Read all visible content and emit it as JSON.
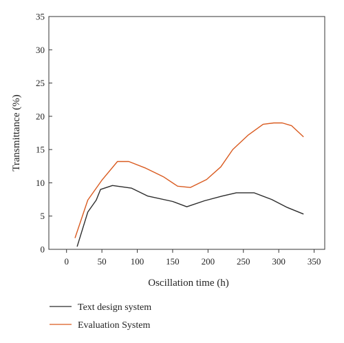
{
  "chart_data": {
    "type": "line",
    "title": "",
    "xlabel": "Oscillation time (h)",
    "ylabel": "Transmittance (%)",
    "xlim": [
      -25,
      365
    ],
    "ylim": [
      0,
      35
    ],
    "xticks": [
      0,
      50,
      100,
      150,
      200,
      250,
      300,
      350
    ],
    "yticks": [
      0,
      5,
      10,
      15,
      20,
      25,
      30,
      35
    ],
    "grid": false,
    "legend_placement": "bottom-left, below plot",
    "series": [
      {
        "name": "Text design system",
        "color": "#2b2b2b",
        "x": [
          15,
          30,
          42,
          48,
          65,
          92,
          115,
          150,
          170,
          195,
          220,
          240,
          265,
          290,
          312,
          335
        ],
        "y": [
          0.4,
          5.6,
          7.4,
          9.0,
          9.6,
          9.2,
          8.0,
          7.2,
          6.4,
          7.3,
          8.0,
          8.5,
          8.5,
          7.5,
          6.3,
          5.3
        ]
      },
      {
        "name": "Evaluation System",
        "color": "#d95a1f",
        "x": [
          12,
          30,
          50,
          72,
          88,
          112,
          137,
          157,
          175,
          198,
          218,
          235,
          257,
          278,
          293,
          305,
          318,
          335
        ],
        "y": [
          1.7,
          7.4,
          10.4,
          13.2,
          13.2,
          12.2,
          10.9,
          9.5,
          9.3,
          10.5,
          12.4,
          15.0,
          17.2,
          18.8,
          19.0,
          19.0,
          18.6,
          16.9
        ]
      }
    ]
  }
}
